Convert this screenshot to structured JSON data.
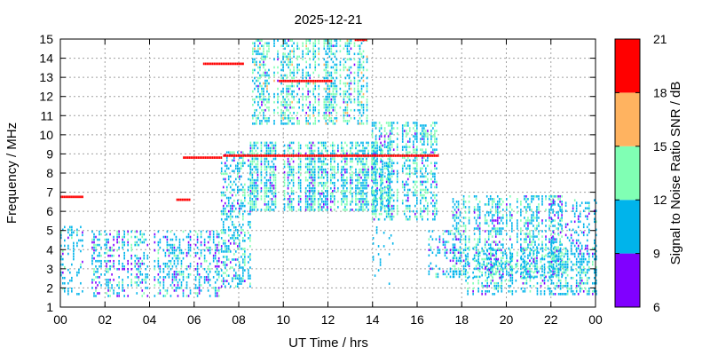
{
  "chart_data": {
    "type": "heatmap",
    "title": "2025-12-21",
    "xlabel": "UT Time / hrs",
    "ylabel": "Frequency / MHz",
    "xlim": [
      0,
      24
    ],
    "ylim": [
      1,
      15
    ],
    "xticks": [
      "00",
      "02",
      "04",
      "06",
      "08",
      "10",
      "12",
      "14",
      "16",
      "18",
      "20",
      "22",
      "00"
    ],
    "yticks": [
      "1",
      "2",
      "3",
      "4",
      "5",
      "6",
      "7",
      "8",
      "9",
      "10",
      "11",
      "12",
      "13",
      "14",
      "15"
    ],
    "grid": true,
    "colorbar": {
      "label": "Signal to Noise Ratio SNR / dB",
      "ticks": [
        "6",
        "9",
        "12",
        "15",
        "18",
        "21"
      ],
      "range": [
        6,
        21
      ],
      "bands": [
        {
          "from": 6,
          "to": 9,
          "color": "#8000ff"
        },
        {
          "from": 9,
          "to": 12,
          "color": "#00b4eb"
        },
        {
          "from": 12,
          "to": 15,
          "color": "#80ffb4"
        },
        {
          "from": 15,
          "to": 18,
          "color": "#ffb360"
        },
        {
          "from": 18,
          "to": 21,
          "color": "#ff0000"
        }
      ]
    },
    "regions": [
      {
        "t0": 0.0,
        "t1": 1.0,
        "f0": 1.6,
        "f1": 5.2,
        "density": 0.25,
        "snr": 10.5,
        "spread": 1.8
      },
      {
        "t0": 1.4,
        "t1": 7.2,
        "f0": 1.5,
        "f1": 5.0,
        "density": 0.45,
        "snr": 10.5,
        "spread": 2.4
      },
      {
        "t0": 7.2,
        "t1": 8.5,
        "f0": 2.0,
        "f1": 9.0,
        "density": 0.45,
        "snr": 11.0,
        "spread": 2.4
      },
      {
        "t0": 8.5,
        "t1": 14.8,
        "f0": 6.0,
        "f1": 9.6,
        "density": 0.75,
        "snr": 11.5,
        "spread": 3.0
      },
      {
        "t0": 8.6,
        "t1": 13.8,
        "f0": 10.5,
        "f1": 14.9,
        "density": 0.55,
        "snr": 12.0,
        "spread": 3.2
      },
      {
        "t0": 13.8,
        "t1": 16.9,
        "f0": 5.5,
        "f1": 10.6,
        "density": 0.55,
        "snr": 11.5,
        "spread": 3.0
      },
      {
        "t0": 16.5,
        "t1": 18.0,
        "f0": 2.5,
        "f1": 5.0,
        "density": 0.35,
        "snr": 10.5,
        "spread": 2.0
      },
      {
        "t0": 17.5,
        "t1": 22.5,
        "f0": 2.5,
        "f1": 6.8,
        "density": 0.55,
        "snr": 11.0,
        "spread": 2.6
      },
      {
        "t0": 18.0,
        "t1": 24.0,
        "f0": 1.6,
        "f1": 4.0,
        "density": 0.45,
        "snr": 11.0,
        "spread": 2.4
      },
      {
        "t0": 22.0,
        "t1": 24.0,
        "f0": 1.6,
        "f1": 6.5,
        "density": 0.3,
        "snr": 10.5,
        "spread": 2.0
      },
      {
        "t0": 14.0,
        "t1": 15.0,
        "f0": 2.0,
        "f1": 5.5,
        "density": 0.08,
        "snr": 10.5,
        "spread": 1.5
      }
    ],
    "bands": [
      {
        "t0": 0.0,
        "t1": 1.0,
        "f": 6.75,
        "snr": 20
      },
      {
        "t0": 5.2,
        "t1": 5.8,
        "f": 6.6,
        "snr": 19
      },
      {
        "t0": 5.5,
        "t1": 7.2,
        "f": 8.8,
        "snr": 20
      },
      {
        "t0": 6.4,
        "t1": 8.2,
        "f": 13.7,
        "snr": 20
      },
      {
        "t0": 13.2,
        "t1": 13.7,
        "f": 14.95,
        "snr": 20
      },
      {
        "t0": 7.3,
        "t1": 16.9,
        "f": 8.9,
        "snr": 19
      },
      {
        "t0": 9.8,
        "t1": 12.2,
        "f": 12.8,
        "snr": 19
      }
    ]
  }
}
